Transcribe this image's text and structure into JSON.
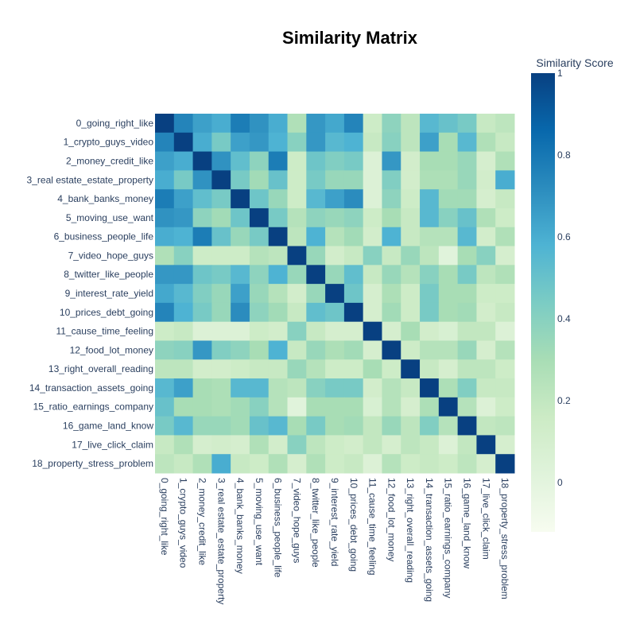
{
  "chart_data": {
    "type": "heatmap",
    "title": "Similarity Matrix",
    "colorbar": {
      "title": "Similarity Score",
      "range": [
        -0.12,
        1
      ],
      "ticks": [
        0,
        0.2,
        0.4,
        0.6,
        0.8,
        1
      ],
      "tick_labels": [
        "0",
        "0.2",
        "0.4",
        "0.6",
        "0.8",
        "1"
      ]
    },
    "colorscale": [
      [
        0.0,
        "#f7fcf0"
      ],
      [
        0.125,
        "#e0f3db"
      ],
      [
        0.25,
        "#ccebc5"
      ],
      [
        0.375,
        "#a8ddb5"
      ],
      [
        0.5,
        "#7bccc4"
      ],
      [
        0.625,
        "#4eb3d3"
      ],
      [
        0.75,
        "#2b8cbe"
      ],
      [
        0.875,
        "#0868ac"
      ],
      [
        1.0,
        "#084081"
      ]
    ],
    "labels": [
      "0_going_right_like",
      "1_crypto_guys_video",
      "2_money_credit_like",
      "3_real estate_estate_property",
      "4_bank_banks_money",
      "5_moving_use_want",
      "6_business_people_life",
      "7_video_hope_guys",
      "8_twitter_like_people",
      "9_interest_rate_yield",
      "10_prices_debt_going",
      "11_cause_time_feeling",
      "12_food_lot_money",
      "13_right_overall_reading",
      "14_transaction_assets_going",
      "15_ratio_earnings_company",
      "16_game_land_know",
      "17_live_click_claim",
      "18_property_stress_problem"
    ],
    "z": [
      [
        1.0,
        0.75,
        0.65,
        0.6,
        0.78,
        0.7,
        0.6,
        0.27,
        0.68,
        0.62,
        0.75,
        0.15,
        0.38,
        0.22,
        0.55,
        0.5,
        0.45,
        0.18,
        0.22
      ],
      [
        0.75,
        1.0,
        0.6,
        0.45,
        0.65,
        0.68,
        0.58,
        0.4,
        0.68,
        0.55,
        0.58,
        0.18,
        0.4,
        0.22,
        0.65,
        0.3,
        0.55,
        0.27,
        0.18
      ],
      [
        0.65,
        0.6,
        1.0,
        0.7,
        0.52,
        0.38,
        0.78,
        0.15,
        0.48,
        0.42,
        0.45,
        0.05,
        0.68,
        0.12,
        0.3,
        0.3,
        0.35,
        0.1,
        0.27
      ],
      [
        0.6,
        0.45,
        0.7,
        1.0,
        0.45,
        0.32,
        0.5,
        0.15,
        0.45,
        0.35,
        0.35,
        0.05,
        0.42,
        0.12,
        0.28,
        0.28,
        0.35,
        0.12,
        0.6
      ],
      [
        0.78,
        0.65,
        0.52,
        0.45,
        1.0,
        0.48,
        0.35,
        0.15,
        0.55,
        0.65,
        0.72,
        0.05,
        0.38,
        0.15,
        0.55,
        0.32,
        0.32,
        0.1,
        0.18
      ],
      [
        0.7,
        0.68,
        0.38,
        0.32,
        0.48,
        1.0,
        0.45,
        0.25,
        0.38,
        0.35,
        0.38,
        0.15,
        0.3,
        0.18,
        0.55,
        0.4,
        0.5,
        0.27,
        0.15
      ],
      [
        0.6,
        0.58,
        0.78,
        0.5,
        0.35,
        0.45,
        1.0,
        0.22,
        0.58,
        0.25,
        0.32,
        0.12,
        0.58,
        0.18,
        0.25,
        0.25,
        0.55,
        0.12,
        0.27
      ],
      [
        0.27,
        0.4,
        0.15,
        0.15,
        0.15,
        0.25,
        0.22,
        1.0,
        0.35,
        0.12,
        0.18,
        0.4,
        0.18,
        0.35,
        0.22,
        0.02,
        0.3,
        0.4,
        0.1
      ],
      [
        0.68,
        0.68,
        0.48,
        0.45,
        0.55,
        0.38,
        0.58,
        0.35,
        1.0,
        0.35,
        0.52,
        0.18,
        0.35,
        0.25,
        0.4,
        0.3,
        0.45,
        0.22,
        0.27
      ],
      [
        0.62,
        0.55,
        0.42,
        0.35,
        0.65,
        0.35,
        0.25,
        0.12,
        0.35,
        1.0,
        0.48,
        0.1,
        0.28,
        0.15,
        0.45,
        0.3,
        0.3,
        0.15,
        0.15
      ],
      [
        0.75,
        0.58,
        0.45,
        0.35,
        0.72,
        0.38,
        0.32,
        0.18,
        0.52,
        0.48,
        1.0,
        0.1,
        0.32,
        0.15,
        0.45,
        0.3,
        0.32,
        0.12,
        0.18
      ],
      [
        0.15,
        0.18,
        0.05,
        0.05,
        0.05,
        0.15,
        0.12,
        0.4,
        0.18,
        0.1,
        0.1,
        1.0,
        0.1,
        0.3,
        0.12,
        0.08,
        0.2,
        0.2,
        0.05
      ],
      [
        0.38,
        0.4,
        0.68,
        0.42,
        0.38,
        0.3,
        0.58,
        0.18,
        0.35,
        0.28,
        0.32,
        0.1,
        1.0,
        0.15,
        0.25,
        0.25,
        0.35,
        0.1,
        0.25
      ],
      [
        0.22,
        0.22,
        0.12,
        0.12,
        0.15,
        0.18,
        0.18,
        0.35,
        0.25,
        0.15,
        0.15,
        0.3,
        0.15,
        1.0,
        0.18,
        0.1,
        0.22,
        0.22,
        0.15
      ],
      [
        0.55,
        0.65,
        0.3,
        0.28,
        0.55,
        0.55,
        0.25,
        0.22,
        0.4,
        0.45,
        0.45,
        0.12,
        0.25,
        0.18,
        1.0,
        0.28,
        0.42,
        0.18,
        0.18
      ],
      [
        0.5,
        0.3,
        0.3,
        0.28,
        0.32,
        0.4,
        0.25,
        0.02,
        0.3,
        0.3,
        0.3,
        0.08,
        0.25,
        0.1,
        0.28,
        1.0,
        0.25,
        0.05,
        0.15
      ],
      [
        0.45,
        0.55,
        0.35,
        0.35,
        0.32,
        0.5,
        0.55,
        0.3,
        0.45,
        0.3,
        0.32,
        0.2,
        0.35,
        0.22,
        0.42,
        0.25,
        1.0,
        0.2,
        0.22
      ],
      [
        0.18,
        0.27,
        0.1,
        0.12,
        0.1,
        0.27,
        0.12,
        0.4,
        0.22,
        0.15,
        0.12,
        0.2,
        0.1,
        0.22,
        0.18,
        0.05,
        0.2,
        1.0,
        0.1
      ],
      [
        0.22,
        0.18,
        0.27,
        0.6,
        0.18,
        0.15,
        0.27,
        0.1,
        0.27,
        0.15,
        0.18,
        0.05,
        0.25,
        0.15,
        0.18,
        0.15,
        0.22,
        0.1,
        1.0
      ]
    ]
  }
}
